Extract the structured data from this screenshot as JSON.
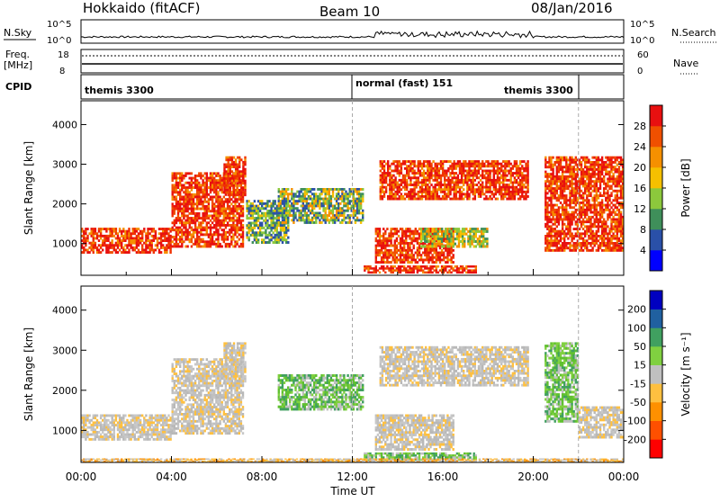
{
  "header": {
    "station": "Hokkaido (fitACF)",
    "beam": "Beam 10",
    "date": "08/Jan/2016"
  },
  "top_panels": {
    "nsky_label": "N.Sky",
    "nsky_ticks": [
      "10^5",
      "10^0"
    ],
    "nsearch_label": "N.Search",
    "freq_label_1": "Freq.",
    "freq_label_2": "[MHz]",
    "freq_ticks": [
      "18",
      "8"
    ],
    "nave_label": "Nave",
    "nave_ticks": [
      "60",
      "0"
    ],
    "cpid_label": "CPID",
    "cpid_segments": [
      {
        "label": "themis 3300",
        "start_hr": 0,
        "end_hr": 12
      },
      {
        "label": "normal (fast) 151",
        "start_hr": 12,
        "end_hr": 22
      },
      {
        "label": "themis 3300",
        "start_hr": 16,
        "end_hr": 22
      }
    ],
    "cpid_divider_hours": [
      12,
      22
    ]
  },
  "chart_data": [
    {
      "type": "heatmap",
      "quantity": "power",
      "ylabel": "Slant Range [km]",
      "xlabel": "Time UT",
      "yticks": [
        1000,
        2000,
        3000,
        4000
      ],
      "ylim": [
        200,
        4600
      ],
      "xlim_hr": [
        0,
        24
      ],
      "colorbar_label": "Power [dB]",
      "colorbar_ticks": [
        "28",
        "24",
        "20",
        "16",
        "12",
        "8",
        "4"
      ],
      "colorbar_colors": [
        "#0000ff",
        "#2a50a8",
        "#3f8f5a",
        "#8cc83c",
        "#f5c000",
        "#f59000",
        "#f05000",
        "#e81010"
      ],
      "regions": [
        {
          "t0": 0.0,
          "t1": 4.0,
          "r0": 750,
          "r1": 1400,
          "level": "high"
        },
        {
          "t0": 4.0,
          "t1": 7.2,
          "r0": 900,
          "r1": 2800,
          "level": "high"
        },
        {
          "t0": 6.3,
          "t1": 7.3,
          "r0": 2200,
          "r1": 3200,
          "level": "high"
        },
        {
          "t0": 7.3,
          "t1": 9.2,
          "r0": 1000,
          "r1": 2100,
          "level": "mid"
        },
        {
          "t0": 8.7,
          "t1": 12.5,
          "r0": 1500,
          "r1": 2400,
          "level": "midhigh"
        },
        {
          "t0": 13.2,
          "t1": 19.8,
          "r0": 2100,
          "r1": 3100,
          "level": "high"
        },
        {
          "t0": 13.0,
          "t1": 16.5,
          "r0": 500,
          "r1": 1400,
          "level": "high"
        },
        {
          "t0": 15.0,
          "t1": 18.0,
          "r0": 900,
          "r1": 1400,
          "level": "low"
        },
        {
          "t0": 12.5,
          "t1": 17.5,
          "r0": 250,
          "r1": 450,
          "level": "high"
        },
        {
          "t0": 20.5,
          "t1": 24.0,
          "r0": 800,
          "r1": 3200,
          "level": "high"
        }
      ]
    },
    {
      "type": "heatmap",
      "quantity": "velocity",
      "ylabel": "Slant Range [km]",
      "xlabel": "Time UT",
      "xticks": [
        "00:00",
        "04:00",
        "08:00",
        "12:00",
        "16:00",
        "20:00",
        "00:00"
      ],
      "yticks": [
        1000,
        2000,
        3000,
        4000
      ],
      "ylim": [
        200,
        4600
      ],
      "xlim_hr": [
        0,
        24
      ],
      "colorbar_label": "Velocity [m s⁻¹]",
      "colorbar_ticks": [
        "200",
        "100",
        "50",
        "15",
        "-15",
        "-50",
        "-100",
        "-200"
      ],
      "colorbar_colors": [
        "#ff0000",
        "#ff5000",
        "#ff9000",
        "#ffc040",
        "#c0c0c0",
        "#80d040",
        "#40a060",
        "#2060a0",
        "#0000c0"
      ],
      "regions": [
        {
          "t0": 0.0,
          "t1": 4.0,
          "r0": 750,
          "r1": 1400,
          "level": "ground"
        },
        {
          "t0": 4.0,
          "t1": 7.2,
          "r0": 900,
          "r1": 2800,
          "level": "ground"
        },
        {
          "t0": 6.3,
          "t1": 7.3,
          "r0": 2200,
          "r1": 3200,
          "level": "ground"
        },
        {
          "t0": 8.7,
          "t1": 12.5,
          "r0": 1500,
          "r1": 2400,
          "level": "green"
        },
        {
          "t0": 13.2,
          "t1": 19.8,
          "r0": 2100,
          "r1": 3100,
          "level": "ground"
        },
        {
          "t0": 13.0,
          "t1": 16.5,
          "r0": 500,
          "r1": 1400,
          "level": "ground"
        },
        {
          "t0": 12.5,
          "t1": 17.5,
          "r0": 250,
          "r1": 450,
          "level": "green"
        },
        {
          "t0": 20.5,
          "t1": 22.0,
          "r0": 1200,
          "r1": 3200,
          "level": "green"
        },
        {
          "t0": 22.0,
          "t1": 24.0,
          "r0": 800,
          "r1": 1600,
          "level": "ground"
        },
        {
          "t0": 0.0,
          "t1": 24.0,
          "r0": 200,
          "r1": 300,
          "level": "orange"
        }
      ]
    }
  ],
  "footer": {
    "xlabel": "Time UT"
  },
  "colors": {
    "axis": "#000000",
    "divider": "#aaaaaa"
  }
}
